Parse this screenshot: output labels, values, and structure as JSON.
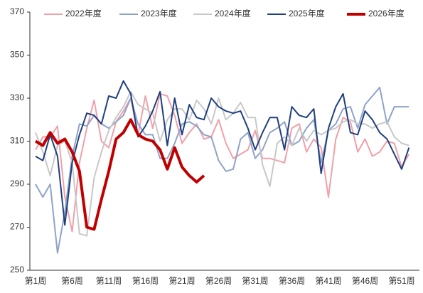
{
  "chart_data": {
    "type": "line",
    "categories": [
      "第1周",
      null,
      null,
      null,
      null,
      "第6周",
      null,
      null,
      null,
      null,
      "第11周",
      null,
      null,
      null,
      null,
      "第16周",
      null,
      null,
      null,
      null,
      "第21周",
      null,
      null,
      null,
      null,
      "第26周",
      null,
      null,
      null,
      null,
      "第31周",
      null,
      null,
      null,
      null,
      "第36周",
      null,
      null,
      null,
      null,
      "第41周",
      null,
      null,
      null,
      null,
      "第46周",
      null,
      null,
      null,
      null,
      "第51周",
      null
    ],
    "ylim": [
      250,
      370
    ],
    "yticks": [
      250,
      270,
      290,
      310,
      330,
      350,
      370
    ],
    "grid": false,
    "legend": "top",
    "series": [
      {
        "name": "2022年度",
        "color": "#f0a0a8",
        "width": 2,
        "values": [
          306,
          312,
          312,
          317,
          284,
          268,
          300,
          316,
          329,
          310,
          307,
          319,
          324,
          330,
          313,
          331,
          316,
          332,
          331,
          322,
          309,
          314,
          318,
          311,
          312,
          320,
          309,
          302,
          304,
          306,
          315,
          302,
          302,
          301,
          300,
          316,
          318,
          305,
          311,
          307,
          284,
          311,
          321,
          319,
          305,
          311,
          303,
          305,
          310,
          309,
          298,
          304
        ]
      },
      {
        "name": "2023年度",
        "color": "#8fa3c8",
        "width": 2,
        "values": [
          290,
          284,
          290,
          258,
          277,
          303,
          318,
          317,
          322,
          318,
          316,
          319,
          322,
          330,
          318,
          313,
          313,
          302,
          302,
          309,
          318,
          319,
          317,
          313,
          312,
          301,
          296,
          297,
          311,
          314,
          302,
          306,
          314,
          316,
          319,
          308,
          310,
          316,
          320,
          300,
          315,
          318,
          325,
          326,
          316,
          327,
          331,
          335,
          318,
          326,
          326,
          326
        ]
      },
      {
        "name": "2024年度",
        "color": "#c8c8c8",
        "width": 2,
        "values": [
          314,
          305,
          294,
          308,
          310,
          300,
          267,
          266,
          293,
          305,
          315,
          321,
          326,
          333,
          327,
          325,
          323,
          310,
          320,
          325,
          325,
          320,
          329,
          325,
          318,
          330,
          320,
          323,
          328,
          321,
          321,
          299,
          289,
          309,
          312,
          308,
          316,
          310,
          315,
          313,
          315,
          316,
          319,
          320,
          318,
          318,
          316,
          318,
          319,
          312,
          309,
          308
        ]
      },
      {
        "name": "2025年度",
        "color": "#1f3f7f",
        "width": 2,
        "values": [
          303,
          301,
          313,
          303,
          271,
          300,
          313,
          323,
          322,
          318,
          331,
          330,
          338,
          332,
          312,
          317,
          324,
          333,
          308,
          330,
          313,
          327,
          321,
          320,
          330,
          326,
          324,
          323,
          324,
          316,
          306,
          314,
          321,
          321,
          306,
          326,
          322,
          321,
          325,
          295,
          316,
          326,
          332,
          314,
          313,
          324,
          320,
          314,
          311,
          304,
          297,
          307
        ]
      },
      {
        "name": "2026年度",
        "color": "#c00000",
        "width": 4,
        "values": [
          310,
          308,
          314,
          309,
          311,
          305,
          296,
          270,
          269,
          283,
          296,
          311,
          314,
          320,
          313,
          311,
          310,
          306,
          297,
          307,
          298,
          294,
          291,
          294,
          null,
          null,
          null,
          null,
          null,
          null,
          null,
          null,
          null,
          null,
          null,
          null,
          null,
          null,
          null,
          null,
          null,
          null,
          null,
          null,
          null,
          null,
          null,
          null,
          null,
          null,
          null,
          null
        ]
      }
    ]
  }
}
